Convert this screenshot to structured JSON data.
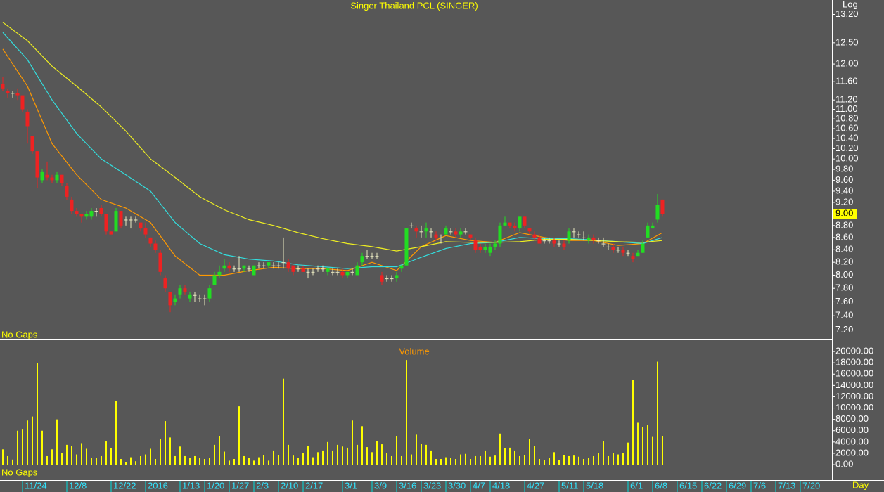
{
  "chart_data": [
    {
      "type": "candlestick",
      "title": "Singer Thailand PCL (SINGER)",
      "scale": "log",
      "scale_label": "Log",
      "note": "No Gaps",
      "xlim": [
        -0.57,
        168.43
      ],
      "ylim": [
        7.07,
        13.57
      ],
      "yticks": [
        {
          "value": 13.2,
          "label": "13.20"
        },
        {
          "value": 12.5,
          "label": "12.50"
        },
        {
          "value": 12.0,
          "label": "12.00"
        },
        {
          "value": 11.6,
          "label": "11.60"
        },
        {
          "value": 11.2,
          "label": "11.20"
        },
        {
          "value": 11.0,
          "label": "11.00"
        },
        {
          "value": 10.8,
          "label": "10.80"
        },
        {
          "value": 10.6,
          "label": "10.60"
        },
        {
          "value": 10.4,
          "label": "10.40"
        },
        {
          "value": 10.2,
          "label": "10.20"
        },
        {
          "value": 10.0,
          "label": "10.00"
        },
        {
          "value": 9.8,
          "label": "9.80"
        },
        {
          "value": 9.6,
          "label": "9.60"
        },
        {
          "value": 9.4,
          "label": "9.40"
        },
        {
          "value": 9.2,
          "label": "9.20"
        },
        {
          "value": 8.8,
          "label": "8.80"
        },
        {
          "value": 8.6,
          "label": "8.60"
        },
        {
          "value": 8.4,
          "label": "8.40"
        },
        {
          "value": 8.2,
          "label": "8.20"
        },
        {
          "value": 8.0,
          "label": "8.00"
        },
        {
          "value": 7.8,
          "label": "7.80"
        },
        {
          "value": 7.6,
          "label": "7.60"
        },
        {
          "value": 7.4,
          "label": "7.40"
        },
        {
          "value": 7.2,
          "label": "7.20"
        }
      ],
      "last_price": {
        "value": 9,
        "label": "9.00"
      },
      "up_color": "#22dd22",
      "down_color": "#ee2222",
      "flat_color": "#e8e8c0",
      "open": [
        11.55,
        11.4,
        11.35,
        11.35,
        11.3,
        10.95,
        10.45,
        10.15,
        9.6,
        9.7,
        9.65,
        9.6,
        9.7,
        9.5,
        9.25,
        9.05,
        9.0,
        8.95,
        8.95,
        9.05,
        9.1,
        9.0,
        8.7,
        8.7,
        9.05,
        8.9,
        8.9,
        8.9,
        8.85,
        8.75,
        8.6,
        8.5,
        8.35,
        7.95,
        7.75,
        7.6,
        7.7,
        7.8,
        7.65,
        7.7,
        7.65,
        7.65,
        7.65,
        7.85,
        8.0,
        8.1,
        8.15,
        8.1,
        8.1,
        8.1,
        8.1,
        8.0,
        8.15,
        8.15,
        8.15,
        8.15,
        8.15,
        8.2,
        8.2,
        8.15,
        8.1,
        8.1,
        8.05,
        8.05,
        8.1,
        8.1,
        8.05,
        8.05,
        8.05,
        8.05,
        8.0,
        8.05,
        8.0,
        8.2,
        8.3,
        8.3,
        8.3,
        8.0,
        7.95,
        7.95,
        7.95,
        8.1,
        8.15,
        8.8,
        8.75,
        8.7,
        8.7,
        8.7,
        8.65,
        8.6,
        8.65,
        8.7,
        8.7,
        8.65,
        8.7,
        8.65,
        8.55,
        8.45,
        8.4,
        8.35,
        8.45,
        8.5,
        8.8,
        8.85,
        8.8,
        8.75,
        8.95,
        8.75,
        8.65,
        8.6,
        8.55,
        8.55,
        8.55,
        8.5,
        8.5,
        8.55,
        8.7,
        8.65,
        8.6,
        8.55,
        8.6,
        8.55,
        8.5,
        8.45,
        8.45,
        8.4,
        8.4,
        8.35,
        8.3,
        8.3,
        8.35,
        8.6,
        8.75,
        8.9,
        9.25
      ],
      "high": [
        11.7,
        11.45,
        11.4,
        11.45,
        11.3,
        11.0,
        10.45,
        10.15,
        9.8,
        9.95,
        9.7,
        9.75,
        9.7,
        9.55,
        9.3,
        9.1,
        9.0,
        9.05,
        9.1,
        9.1,
        9.15,
        9.0,
        8.7,
        9.1,
        9.05,
        8.95,
        8.95,
        8.95,
        8.85,
        8.85,
        8.6,
        8.55,
        8.4,
        8.0,
        7.75,
        7.7,
        7.85,
        7.85,
        7.75,
        7.75,
        7.7,
        7.7,
        7.85,
        8.05,
        8.15,
        8.25,
        8.2,
        8.15,
        8.3,
        8.15,
        8.15,
        8.15,
        8.2,
        8.2,
        8.2,
        8.2,
        8.2,
        8.6,
        8.25,
        8.15,
        8.15,
        8.15,
        8.1,
        8.1,
        8.15,
        8.15,
        8.1,
        8.1,
        8.1,
        8.1,
        8.05,
        8.1,
        8.2,
        8.35,
        8.4,
        8.35,
        8.35,
        8.05,
        8.0,
        8.0,
        8.05,
        8.15,
        8.75,
        8.85,
        8.8,
        8.8,
        8.85,
        8.75,
        8.7,
        8.65,
        8.8,
        8.75,
        8.75,
        8.75,
        8.75,
        8.65,
        8.6,
        8.5,
        8.5,
        8.5,
        8.55,
        8.85,
        8.95,
        8.85,
        8.85,
        8.95,
        8.95,
        8.75,
        8.7,
        8.65,
        8.6,
        8.6,
        8.6,
        8.55,
        8.55,
        8.75,
        8.75,
        8.7,
        8.7,
        8.65,
        8.65,
        8.6,
        8.6,
        8.5,
        8.5,
        8.45,
        8.45,
        8.4,
        8.35,
        8.4,
        8.55,
        8.85,
        8.85,
        9.35,
        9.25
      ],
      "low": [
        11.4,
        11.25,
        11.25,
        11.2,
        10.95,
        10.3,
        10.1,
        9.45,
        9.55,
        9.6,
        9.55,
        9.55,
        9.5,
        9.25,
        9.0,
        8.95,
        8.85,
        8.9,
        8.9,
        8.95,
        8.95,
        8.65,
        8.65,
        8.7,
        8.75,
        8.8,
        8.75,
        8.85,
        8.7,
        8.6,
        8.45,
        8.35,
        8.0,
        7.75,
        7.45,
        7.55,
        7.65,
        7.7,
        7.6,
        7.6,
        7.6,
        7.55,
        7.6,
        7.85,
        7.95,
        8.05,
        8.05,
        8.05,
        8.05,
        8.05,
        8.05,
        8.0,
        8.1,
        8.1,
        8.1,
        8.1,
        8.1,
        8.1,
        8.05,
        8.0,
        8.05,
        8.05,
        7.95,
        8.0,
        8.05,
        8.05,
        8.0,
        8.0,
        8.0,
        7.95,
        7.95,
        8.0,
        8.0,
        8.15,
        8.25,
        8.25,
        8.25,
        7.85,
        7.9,
        7.9,
        7.9,
        8.05,
        8.15,
        8.75,
        8.6,
        8.6,
        8.6,
        8.6,
        8.55,
        8.5,
        8.65,
        8.65,
        8.6,
        8.6,
        8.65,
        8.55,
        8.35,
        8.35,
        8.35,
        8.3,
        8.4,
        8.45,
        8.8,
        8.75,
        8.7,
        8.7,
        8.75,
        8.65,
        8.55,
        8.5,
        8.5,
        8.5,
        8.45,
        8.45,
        8.4,
        8.5,
        8.6,
        8.6,
        8.55,
        8.5,
        8.5,
        8.5,
        8.45,
        8.4,
        8.35,
        8.35,
        8.3,
        8.3,
        8.2,
        8.3,
        8.35,
        8.6,
        8.75,
        8.85,
        8.95
      ],
      "close": [
        11.45,
        11.35,
        11.35,
        11.3,
        11.0,
        10.65,
        10.15,
        9.65,
        9.75,
        9.65,
        9.6,
        9.7,
        9.55,
        9.3,
        9.05,
        9.0,
        8.95,
        9.0,
        9.05,
        9.05,
        9.0,
        8.7,
        8.65,
        9.05,
        8.8,
        8.9,
        8.9,
        8.9,
        8.75,
        8.65,
        8.5,
        8.4,
        8.05,
        7.8,
        7.55,
        7.65,
        7.8,
        7.75,
        7.7,
        7.7,
        7.65,
        7.65,
        7.8,
        8.0,
        8.05,
        8.15,
        8.1,
        8.1,
        8.1,
        8.15,
        8.1,
        8.15,
        8.15,
        8.15,
        8.2,
        8.15,
        8.15,
        8.2,
        8.1,
        8.05,
        8.1,
        8.05,
        8.05,
        8.05,
        8.1,
        8.1,
        8.1,
        8.05,
        8.05,
        8.0,
        8.05,
        8.05,
        8.15,
        8.3,
        8.3,
        8.3,
        8.3,
        7.9,
        7.95,
        7.95,
        8.0,
        8.15,
        8.75,
        8.8,
        8.7,
        8.7,
        8.75,
        8.7,
        8.6,
        8.6,
        8.75,
        8.7,
        8.65,
        8.7,
        8.7,
        8.6,
        8.4,
        8.4,
        8.45,
        8.45,
        8.5,
        8.8,
        8.85,
        8.8,
        8.75,
        8.95,
        8.8,
        8.7,
        8.6,
        8.5,
        8.55,
        8.55,
        8.5,
        8.5,
        8.45,
        8.7,
        8.7,
        8.65,
        8.6,
        8.6,
        8.55,
        8.55,
        8.5,
        8.45,
        8.4,
        8.4,
        8.35,
        8.35,
        8.25,
        8.35,
        8.5,
        8.8,
        8.8,
        9.15,
        9.0
      ],
      "line_x": [
        0,
        5,
        10,
        15,
        20,
        25,
        30,
        35,
        40,
        45,
        50,
        55,
        60,
        65,
        70,
        75,
        80,
        85,
        90,
        95,
        100,
        105,
        110,
        115,
        120,
        125,
        130,
        134
      ],
      "series": [
        {
          "color": "#ff9900",
          "values": [
            12.35,
            11.5,
            10.3,
            9.7,
            9.25,
            9.1,
            8.85,
            8.3,
            8.0,
            8.0,
            8.07,
            8.12,
            8.1,
            8.1,
            8.07,
            8.2,
            8.07,
            8.45,
            8.63,
            8.55,
            8.52,
            8.68,
            8.6,
            8.55,
            8.55,
            8.47,
            8.5,
            8.68
          ]
        },
        {
          "color": "#33dddd",
          "values": [
            12.75,
            12.1,
            11.2,
            10.5,
            10.0,
            9.7,
            9.4,
            8.85,
            8.5,
            8.32,
            8.25,
            8.22,
            8.16,
            8.13,
            8.1,
            8.13,
            8.13,
            8.28,
            8.42,
            8.5,
            8.52,
            8.6,
            8.58,
            8.58,
            8.56,
            8.53,
            8.5,
            8.6
          ]
        },
        {
          "color": "#eeee22",
          "values": [
            13.0,
            12.55,
            11.95,
            11.5,
            11.05,
            10.55,
            10.0,
            9.65,
            9.3,
            9.07,
            8.9,
            8.8,
            8.68,
            8.58,
            8.5,
            8.45,
            8.38,
            8.45,
            8.53,
            8.52,
            8.52,
            8.53,
            8.57,
            8.57,
            8.55,
            8.53,
            8.52,
            8.55
          ]
        }
      ]
    },
    {
      "type": "bar",
      "title": "Volume",
      "note": "No Gaps",
      "xlabel": "Day",
      "color": "#ffff00",
      "xlim": [
        -0.57,
        168.43
      ],
      "ylim": [
        -3350,
        21250
      ],
      "yticks": [
        {
          "value": 20000,
          "label": "20000.00"
        },
        {
          "value": 18000,
          "label": "18000.00"
        },
        {
          "value": 16000,
          "label": "16000.00"
        },
        {
          "value": 14000,
          "label": "14000.00"
        },
        {
          "value": 12000,
          "label": "12000.00"
        },
        {
          "value": 10000,
          "label": "10000.00"
        },
        {
          "value": 8000,
          "label": "8000.00"
        },
        {
          "value": 6000,
          "label": "6000.00"
        },
        {
          "value": 4000,
          "label": "4000.00"
        },
        {
          "value": 2000,
          "label": "2000.00"
        },
        {
          "value": 0,
          "label": "0.00"
        }
      ],
      "xticks": [
        {
          "value": 4,
          "label": "11/24"
        },
        {
          "value": 13,
          "label": "12/8"
        },
        {
          "value": 22,
          "label": "12/22"
        },
        {
          "value": 29,
          "label": "2016"
        },
        {
          "value": 36,
          "label": "1/13"
        },
        {
          "value": 41,
          "label": "1/20"
        },
        {
          "value": 46,
          "label": "1/27"
        },
        {
          "value": 51,
          "label": "2/3"
        },
        {
          "value": 56,
          "label": "2/10"
        },
        {
          "value": 61,
          "label": "2/17"
        },
        {
          "value": 69,
          "label": "3/1"
        },
        {
          "value": 75,
          "label": "3/9"
        },
        {
          "value": 80,
          "label": "3/16"
        },
        {
          "value": 85,
          "label": "3/23"
        },
        {
          "value": 90,
          "label": "3/30"
        },
        {
          "value": 95,
          "label": "4/7"
        },
        {
          "value": 99,
          "label": "4/18"
        },
        {
          "value": 106,
          "label": "4/27"
        },
        {
          "value": 113,
          "label": "5/11"
        },
        {
          "value": 118,
          "label": "5/18"
        },
        {
          "value": 127,
          "label": "6/1"
        },
        {
          "value": 132,
          "label": "6/8"
        },
        {
          "value": 137,
          "label": "6/15"
        },
        {
          "value": 142,
          "label": "6/22"
        },
        {
          "value": 147,
          "label": "6/29"
        },
        {
          "value": 152,
          "label": "7/6"
        },
        {
          "value": 157,
          "label": "7/13"
        },
        {
          "value": 162,
          "label": "7/20"
        }
      ],
      "values": [
        2700,
        1500,
        900,
        6000,
        6200,
        7800,
        8500,
        18000,
        6000,
        1500,
        2700,
        8000,
        2000,
        3500,
        3300,
        1800,
        3800,
        2800,
        1200,
        1200,
        1500,
        4100,
        2900,
        11200,
        1000,
        500,
        1300,
        600,
        1500,
        1800,
        2800,
        1000,
        4500,
        7700,
        4800,
        1500,
        3200,
        1500,
        1200,
        1500,
        1200,
        1000,
        1200,
        3500,
        5000,
        2300,
        700,
        1000,
        10300,
        1500,
        1200,
        700,
        1300,
        1700,
        700,
        2500,
        1700,
        15200,
        3500,
        1600,
        1200,
        2000,
        3300,
        1300,
        2200,
        2500,
        4000,
        2500,
        3500,
        3200,
        3000,
        7800,
        3500,
        6800,
        3100,
        2200,
        4200,
        3600,
        2000,
        1500,
        5000,
        1500,
        18500,
        1800,
        5300,
        3700,
        3500,
        2500,
        1000,
        1000,
        1300,
        1200,
        1000,
        1800,
        1900,
        1000,
        1500,
        1500,
        2500,
        1400,
        1600,
        5500,
        2900,
        3000,
        2500,
        1500,
        1700,
        4600,
        3300,
        1000,
        800,
        1200,
        2200,
        800,
        1700,
        1500,
        1600,
        1400,
        1000,
        1200,
        1500,
        2000,
        4100,
        1500,
        2000,
        1800,
        2000,
        3900,
        15000,
        7400,
        6600,
        7000,
        4900,
        18200,
        5100
      ]
    }
  ]
}
